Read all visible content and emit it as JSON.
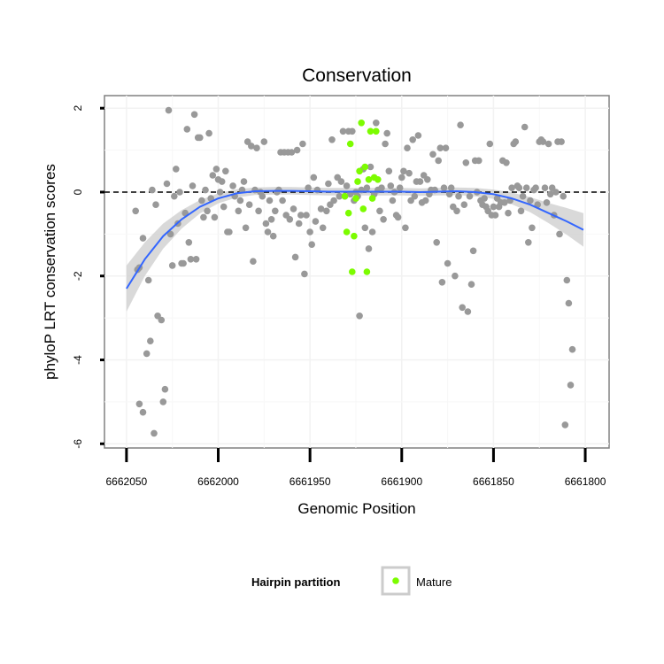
{
  "chart_data": {
    "type": "scatter",
    "title": "Conservation",
    "xlabel": "Genomic Position",
    "ylabel": "phyloP LRT conservation scores",
    "x_reversed": true,
    "xlim": [
      6662062,
      6661787
    ],
    "ylim": [
      -6.1,
      2.3
    ],
    "x_ticks": [
      6662050,
      6662000,
      6661950,
      6661900,
      6661850,
      6661800
    ],
    "y_ticks": [
      2,
      0,
      -2,
      -4,
      -6
    ],
    "x_tick_labels": [
      "6662050",
      "6662000",
      "6661950",
      "6661900",
      "6661850",
      "6661800"
    ],
    "y_tick_labels": [
      "2",
      "0",
      "-2",
      "-4",
      "-6"
    ],
    "grid": true,
    "reference_line": {
      "y": 0,
      "style": "dashed"
    },
    "legend": {
      "title": "Hairpin partition",
      "placement": "bottom",
      "entries": [
        {
          "label": "Mature",
          "color": "#7cfc00"
        }
      ]
    },
    "colors": {
      "background_points": "#999999",
      "mature_points": "#7cfc00",
      "smooth_line": "#3366ff",
      "confidence_band": "#cccccc"
    },
    "series": [
      {
        "name": "",
        "color": "#999999",
        "points": [
          [
            6662045,
            -0.45
          ],
          [
            6662044,
            -1.85
          ],
          [
            6662043,
            -1.8
          ],
          [
            6662043,
            -5.05
          ],
          [
            6662041,
            -5.25
          ],
          [
            6662041,
            -1.1
          ],
          [
            6662039,
            -3.85
          ],
          [
            6662038,
            -2.1
          ],
          [
            6662037,
            -3.55
          ],
          [
            6662036,
            0.05
          ],
          [
            6662035,
            -5.75
          ],
          [
            6662034,
            -0.3
          ],
          [
            6662033,
            -2.95
          ],
          [
            6662031,
            -3.05
          ],
          [
            6662030,
            -5.0
          ],
          [
            6662029,
            -4.7
          ],
          [
            6662028,
            0.2
          ],
          [
            6662027,
            1.95
          ],
          [
            6662026,
            -1.0
          ],
          [
            6662025,
            -1.75
          ],
          [
            6662024,
            -0.1
          ],
          [
            6662023,
            0.55
          ],
          [
            6662022,
            -0.75
          ],
          [
            6662021,
            0.0
          ],
          [
            6662020,
            -1.7
          ],
          [
            6662019,
            -1.7
          ],
          [
            6662018,
            -0.5
          ],
          [
            6662017,
            1.5
          ],
          [
            6662016,
            -1.2
          ],
          [
            6662015,
            -1.6
          ],
          [
            6662014,
            0.15
          ],
          [
            6662013,
            1.85
          ],
          [
            6662012,
            -1.6
          ],
          [
            6662011,
            1.3
          ],
          [
            6662010,
            1.3
          ],
          [
            6662009,
            -0.2
          ],
          [
            6662008,
            -0.6
          ],
          [
            6662007,
            0.05
          ],
          [
            6662006,
            -0.45
          ],
          [
            6662005,
            1.4
          ],
          [
            6662004,
            -0.15
          ],
          [
            6662003,
            0.4
          ],
          [
            6662002,
            -0.6
          ],
          [
            6662001,
            0.55
          ],
          [
            6662000,
            0.3
          ],
          [
            6661999,
            0.0
          ],
          [
            6661998,
            0.25
          ],
          [
            6661997,
            -0.35
          ],
          [
            6661996,
            0.5
          ],
          [
            6661995,
            -0.95
          ],
          [
            6661994,
            -0.95
          ],
          [
            6661992,
            0.15
          ],
          [
            6661991,
            -0.1
          ],
          [
            6661989,
            -0.45
          ],
          [
            6661988,
            -0.2
          ],
          [
            6661987,
            0.05
          ],
          [
            6661986,
            0.25
          ],
          [
            6661985,
            -0.85
          ],
          [
            6661984,
            1.2
          ],
          [
            6661983,
            -0.3
          ],
          [
            6661982,
            1.1
          ],
          [
            6661981,
            -1.65
          ],
          [
            6661980,
            0.05
          ],
          [
            6661979,
            1.05
          ],
          [
            6661978,
            -0.45
          ],
          [
            6661977,
            0.0
          ],
          [
            6661976,
            -0.1
          ],
          [
            6661975,
            1.2
          ],
          [
            6661974,
            -0.75
          ],
          [
            6661973,
            -0.95
          ],
          [
            6661972,
            -0.2
          ],
          [
            6661971,
            -0.65
          ],
          [
            6661970,
            -1.05
          ],
          [
            6661969,
            -0.45
          ],
          [
            6661968,
            0.0
          ],
          [
            6661967,
            0.05
          ],
          [
            6661966,
            0.95
          ],
          [
            6661965,
            -0.2
          ],
          [
            6661964,
            0.95
          ],
          [
            6661963,
            -0.55
          ],
          [
            6661962,
            0.95
          ],
          [
            6661961,
            -0.65
          ],
          [
            6661960,
            0.95
          ],
          [
            6661959,
            -0.4
          ],
          [
            6661958,
            -1.55
          ],
          [
            6661957,
            1.0
          ],
          [
            6661956,
            -0.75
          ],
          [
            6661955,
            -0.55
          ],
          [
            6661954,
            1.15
          ],
          [
            6661953,
            -1.95
          ],
          [
            6661952,
            -0.55
          ],
          [
            6661951,
            0.1
          ],
          [
            6661950,
            -0.95
          ],
          [
            6661949,
            -1.25
          ],
          [
            6661948,
            0.35
          ],
          [
            6661947,
            -0.7
          ],
          [
            6661946,
            0.05
          ],
          [
            6661944,
            -0.4
          ],
          [
            6661943,
            -0.85
          ],
          [
            6661941,
            -0.45
          ],
          [
            6661940,
            0.2
          ],
          [
            6661939,
            -0.3
          ],
          [
            6661938,
            1.25
          ],
          [
            6661937,
            -0.2
          ],
          [
            6661935,
            0.35
          ],
          [
            6661934,
            -0.1
          ],
          [
            6661933,
            0.25
          ],
          [
            6661932,
            1.45
          ],
          [
            6661931,
            -0.1
          ],
          [
            6661930,
            0.15
          ],
          [
            6661929,
            1.45
          ],
          [
            6661928,
            -0.05
          ],
          [
            6661927,
            1.45
          ],
          [
            6661926,
            -0.2
          ],
          [
            6661925,
            0.0
          ],
          [
            6661924,
            -0.1
          ],
          [
            6661923,
            -2.95
          ],
          [
            6661922,
            0.05
          ],
          [
            6661921,
            0.55
          ],
          [
            6661920,
            -0.85
          ],
          [
            6661919,
            0.1
          ],
          [
            6661918,
            -1.35
          ],
          [
            6661917,
            0.6
          ],
          [
            6661916,
            -0.95
          ],
          [
            6661915,
            -0.05
          ],
          [
            6661914,
            1.65
          ],
          [
            6661913,
            0.05
          ],
          [
            6661912,
            -0.45
          ],
          [
            6661911,
            0.1
          ],
          [
            6661910,
            -0.65
          ],
          [
            6661909,
            1.15
          ],
          [
            6661908,
            1.4
          ],
          [
            6661907,
            0.5
          ],
          [
            6661906,
            0.15
          ],
          [
            6661905,
            -0.2
          ],
          [
            6661904,
            0.0
          ],
          [
            6661903,
            -0.55
          ],
          [
            6661902,
            -0.6
          ],
          [
            6661901,
            0.1
          ],
          [
            6661900,
            0.35
          ],
          [
            6661899,
            0.5
          ],
          [
            6661898,
            -0.85
          ],
          [
            6661897,
            1.05
          ],
          [
            6661896,
            0.45
          ],
          [
            6661895,
            -0.2
          ],
          [
            6661894,
            1.25
          ],
          [
            6661893,
            -0.1
          ],
          [
            6661892,
            0.25
          ],
          [
            6661891,
            1.35
          ],
          [
            6661890,
            0.25
          ],
          [
            6661889,
            -0.25
          ],
          [
            6661888,
            0.4
          ],
          [
            6661887,
            -0.2
          ],
          [
            6661886,
            0.3
          ],
          [
            6661885,
            -0.05
          ],
          [
            6661884,
            0.05
          ],
          [
            6661883,
            0.9
          ],
          [
            6661882,
            0.05
          ],
          [
            6661881,
            -1.2
          ],
          [
            6661880,
            0.75
          ],
          [
            6661879,
            1.05
          ],
          [
            6661878,
            -2.15
          ],
          [
            6661877,
            0.1
          ],
          [
            6661876,
            1.05
          ],
          [
            6661875,
            -1.7
          ],
          [
            6661874,
            -0.05
          ],
          [
            6661873,
            0.1
          ],
          [
            6661872,
            -0.35
          ],
          [
            6661871,
            -2.0
          ],
          [
            6661870,
            -0.45
          ],
          [
            6661869,
            -0.1
          ],
          [
            6661868,
            1.6
          ],
          [
            6661867,
            -2.75
          ],
          [
            6661866,
            -0.3
          ],
          [
            6661865,
            0.7
          ],
          [
            6661864,
            -2.85
          ],
          [
            6661863,
            -0.1
          ],
          [
            6661862,
            -2.2
          ],
          [
            6661861,
            -1.4
          ],
          [
            6661860,
            0.75
          ],
          [
            6661859,
            0.0
          ],
          [
            6661858,
            0.75
          ],
          [
            6661857,
            -0.2
          ],
          [
            6661856,
            -0.3
          ],
          [
            6661855,
            -0.15
          ],
          [
            6661854,
            -0.35
          ],
          [
            6661853,
            -0.45
          ],
          [
            6661852,
            1.15
          ],
          [
            6661851,
            -0.55
          ],
          [
            6661850,
            -0.35
          ],
          [
            6661849,
            -0.55
          ],
          [
            6661848,
            -0.15
          ],
          [
            6661847,
            -0.35
          ],
          [
            6661846,
            -0.25
          ],
          [
            6661845,
            0.75
          ],
          [
            6661844,
            -0.25
          ],
          [
            6661843,
            0.7
          ],
          [
            6661842,
            -0.5
          ],
          [
            6661841,
            -0.2
          ],
          [
            6661840,
            0.1
          ],
          [
            6661839,
            1.15
          ],
          [
            6661838,
            1.2
          ],
          [
            6661837,
            0.15
          ],
          [
            6661836,
            0.1
          ],
          [
            6661835,
            -0.45
          ],
          [
            6661834,
            -0.1
          ],
          [
            6661833,
            1.55
          ],
          [
            6661832,
            0.1
          ],
          [
            6661831,
            -1.2
          ],
          [
            6661830,
            -0.2
          ],
          [
            6661829,
            -0.85
          ],
          [
            6661828,
            0.05
          ],
          [
            6661827,
            0.1
          ],
          [
            6661826,
            -0.3
          ],
          [
            6661825,
            1.2
          ],
          [
            6661824,
            1.25
          ],
          [
            6661823,
            1.2
          ],
          [
            6661822,
            0.1
          ],
          [
            6661821,
            -0.25
          ],
          [
            6661820,
            1.15
          ],
          [
            6661819,
            -0.05
          ],
          [
            6661818,
            0.1
          ],
          [
            6661817,
            -0.55
          ],
          [
            6661816,
            0.0
          ],
          [
            6661815,
            1.2
          ],
          [
            6661814,
            -1.0
          ],
          [
            6661813,
            1.2
          ],
          [
            6661812,
            -0.1
          ],
          [
            6661811,
            -5.55
          ],
          [
            6661810,
            -2.1
          ],
          [
            6661809,
            -2.65
          ],
          [
            6661808,
            -4.6
          ],
          [
            6661807,
            -3.75
          ]
        ]
      },
      {
        "name": "Mature",
        "color": "#7cfc00",
        "points": [
          [
            6661931,
            -0.1
          ],
          [
            6661930,
            -0.95
          ],
          [
            6661929,
            -0.5
          ],
          [
            6661928,
            1.15
          ],
          [
            6661927,
            -1.9
          ],
          [
            6661926,
            -1.05
          ],
          [
            6661925,
            -0.15
          ],
          [
            6661924,
            0.25
          ],
          [
            6661923,
            0.5
          ],
          [
            6661922,
            1.65
          ],
          [
            6661921,
            -0.4
          ],
          [
            6661920,
            0.6
          ],
          [
            6661919,
            -1.9
          ],
          [
            6661918,
            0.3
          ],
          [
            6661917,
            1.45
          ],
          [
            6661916,
            -0.15
          ],
          [
            6661915,
            0.35
          ],
          [
            6661914,
            1.45
          ],
          [
            6661913,
            0.3
          ]
        ]
      }
    ],
    "smooth": [
      [
        6662050,
        -2.3
      ],
      [
        6662040,
        -1.6
      ],
      [
        6662030,
        -1.05
      ],
      [
        6662020,
        -0.65
      ],
      [
        6662010,
        -0.35
      ],
      [
        6662000,
        -0.15
      ],
      [
        6661990,
        -0.03
      ],
      [
        6661980,
        0.02
      ],
      [
        6661970,
        0.03
      ],
      [
        6661960,
        0.03
      ],
      [
        6661950,
        0.02
      ],
      [
        6661940,
        0.01
      ],
      [
        6661930,
        0.01
      ],
      [
        6661920,
        0.01
      ],
      [
        6661910,
        0.01
      ],
      [
        6661900,
        0.01
      ],
      [
        6661890,
        0.0
      ],
      [
        6661880,
        0.01
      ],
      [
        6661870,
        0.02
      ],
      [
        6661860,
        0.0
      ],
      [
        6661850,
        -0.05
      ],
      [
        6661840,
        -0.15
      ],
      [
        6661830,
        -0.3
      ],
      [
        6661820,
        -0.5
      ],
      [
        6661810,
        -0.7
      ],
      [
        6661801,
        -0.9
      ]
    ],
    "smooth_se": [
      0.55,
      0.4,
      0.3,
      0.22,
      0.16,
      0.12,
      0.1,
      0.09,
      0.09,
      0.09,
      0.09,
      0.09,
      0.09,
      0.09,
      0.09,
      0.09,
      0.09,
      0.09,
      0.09,
      0.1,
      0.11,
      0.14,
      0.18,
      0.24,
      0.32,
      0.4
    ]
  }
}
